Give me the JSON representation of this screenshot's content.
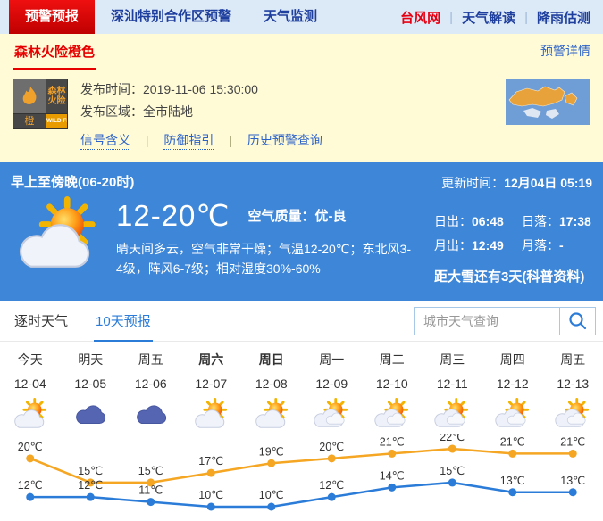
{
  "nav": {
    "tabs": [
      {
        "label": "预警预报",
        "active": true
      },
      {
        "label": "深汕特别合作区预警",
        "active": false
      },
      {
        "label": "天气监测",
        "active": false
      }
    ],
    "links": [
      {
        "label": "台风网"
      },
      {
        "label": "天气解读"
      },
      {
        "label": "降雨估测"
      }
    ]
  },
  "warning": {
    "tab_label": "森林火险橙色",
    "detail_link": "预警详情",
    "icon": {
      "title_line1": "森林",
      "title_line2": "火险",
      "level": "橙",
      "en_label": "WILD FIRE"
    },
    "publish_time_label": "发布时间：",
    "publish_time": "2019-11-06 15:30:00",
    "publish_area_label": "发布区域：",
    "publish_area": "全市陆地",
    "links": [
      "信号含义",
      "防御指引",
      "历史预警查询"
    ]
  },
  "current": {
    "period": "早上至傍晚(06-20时)",
    "update_label": "更新时间：",
    "update_time": "12月04日 05:19",
    "temp_range": "12-20℃",
    "air_quality_label": "空气质量：",
    "air_quality": "优-良",
    "description": "晴天间多云，空气非常干燥；气温12-20℃；东北风3-4级，阵风6-7级；相对湿度30%-60%",
    "sunrise_label": "日出：",
    "sunrise": "06:48",
    "sunset_label": "日落：",
    "sunset": "17:38",
    "moonrise_label": "月出：",
    "moonrise": "12:49",
    "moonset_label": "月落：",
    "moonset": "-",
    "solar_term_note": "距大雪还有3天(科普资料)"
  },
  "forecast_section": {
    "tab_hourly": "逐时天气",
    "tab_ten_day": "10天预报",
    "search_placeholder": "城市天气查询"
  },
  "chart_data": {
    "type": "line",
    "categories": [
      "今天",
      "明天",
      "周五",
      "周六",
      "周日",
      "周一",
      "周二",
      "周三",
      "周四",
      "周五"
    ],
    "dates": [
      "12-04",
      "12-05",
      "12-06",
      "12-07",
      "12-08",
      "12-09",
      "12-10",
      "12-11",
      "12-12",
      "12-13"
    ],
    "icons": [
      "partly-cloudy",
      "cloudy",
      "cloudy",
      "partly-cloudy",
      "partly-cloudy",
      "partly-cloudy-2",
      "partly-cloudy-2",
      "partly-cloudy-2",
      "partly-cloudy-2",
      "partly-cloudy-2"
    ],
    "weekend_indices": [
      3,
      4
    ],
    "series": [
      {
        "name": "high",
        "color": "#f5a623",
        "values": [
          20,
          15,
          15,
          17,
          19,
          20,
          21,
          22,
          21,
          21
        ]
      },
      {
        "name": "low",
        "color": "#2b7cd8",
        "values": [
          12,
          12,
          11,
          10,
          10,
          12,
          14,
          15,
          13,
          13
        ]
      }
    ],
    "unit": "℃",
    "ylim": [
      10,
      22
    ],
    "grid": false,
    "legend": false
  },
  "colors": {
    "accent_red": "#d40000",
    "nav_blue": "#1f3f9e",
    "panel_blue": "#3d86d8",
    "link_blue": "#2b62c9",
    "tab_active_blue": "#2b7cd8",
    "warning_bg": "#fffbd7",
    "high_line": "#f5a623",
    "low_line": "#2b7cd8"
  }
}
